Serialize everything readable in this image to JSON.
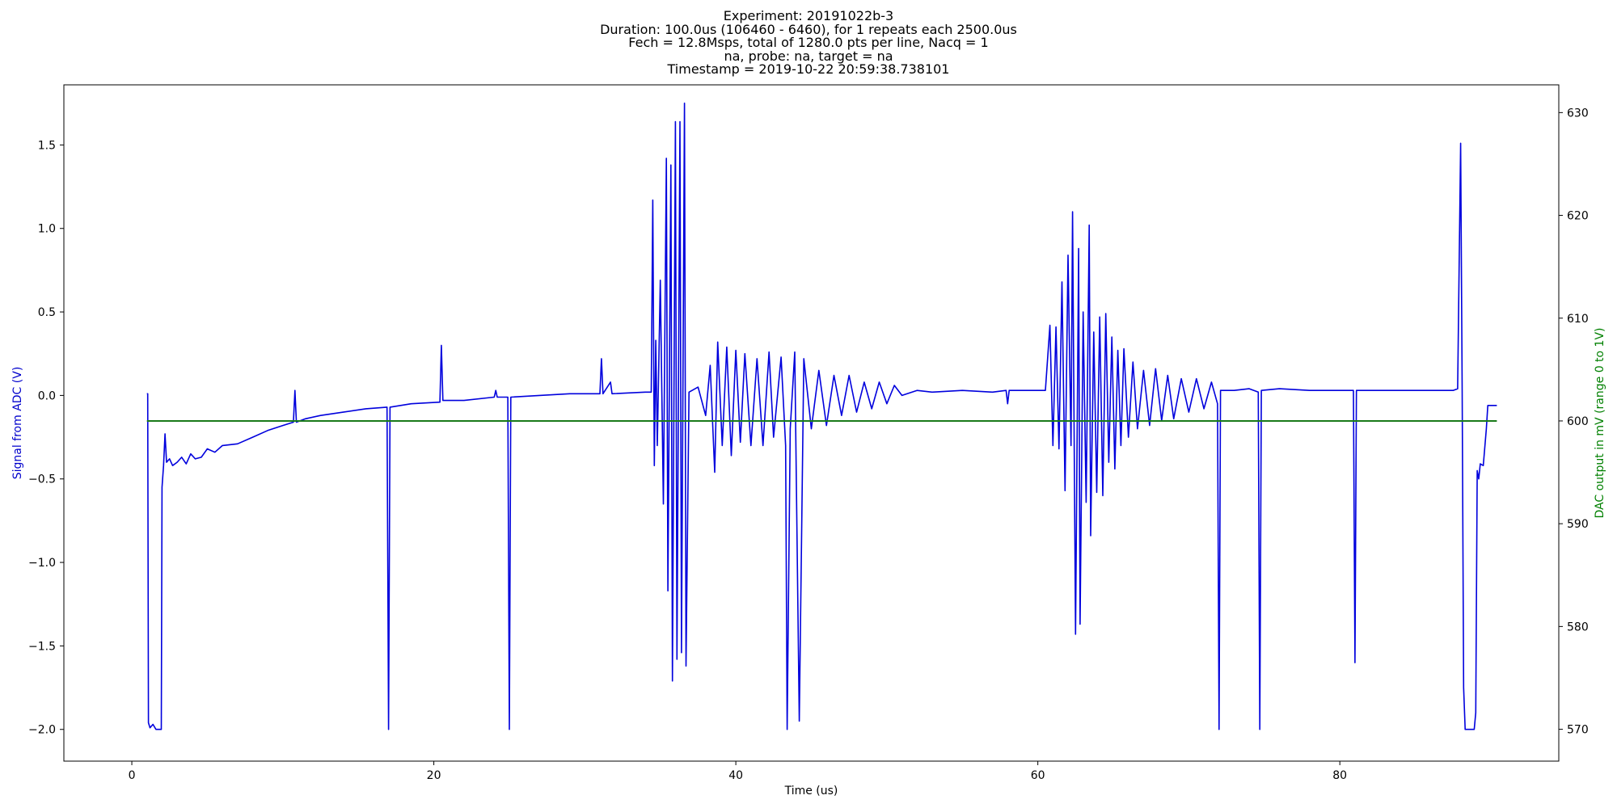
{
  "chart_data": {
    "type": "line",
    "title_lines": [
      "Experiment: 20191022b-3",
      "Duration: 100.0us (106460 - 6460), for 1 repeats each 2500.0us",
      "Fech = 12.8Msps, total of 1280.0 pts per line, Nacq = 1",
      "na, probe: na, target = na",
      "Timestamp = 2019-10-22 20:59:38.738101"
    ],
    "xlabel": "Time (us)",
    "ylabel_left": "Signal from ADC (V)",
    "ylabel_right": "DAC output in mV (range 0 to 1V)",
    "xlim": [
      -4.5,
      94.5
    ],
    "ylim_left": [
      -2.19,
      1.86
    ],
    "ylim_right": [
      566.9,
      632.7
    ],
    "x_ticks": [
      0,
      20,
      40,
      60,
      80
    ],
    "x_tick_labels": [
      "0",
      "20",
      "40",
      "60",
      "80"
    ],
    "y_left_ticks": [
      -2.0,
      -1.5,
      -1.0,
      -0.5,
      0.0,
      0.5,
      1.0,
      1.5
    ],
    "y_left_tick_labels": [
      "−2.0",
      "−1.5",
      "−1.0",
      "−0.5",
      "0.0",
      "0.5",
      "1.0",
      "1.5"
    ],
    "y_right_ticks": [
      570,
      580,
      590,
      600,
      610,
      620,
      630
    ],
    "y_right_tick_labels": [
      "570",
      "580",
      "590",
      "600",
      "610",
      "620",
      "630"
    ],
    "colors": {
      "adc": "#0000dd",
      "dac": "#1a7a1a",
      "left_label": "#0000cc",
      "right_label": "#008000"
    },
    "series": [
      {
        "axis": "left",
        "color": "#0000dd",
        "points": [
          [
            1.0,
            0.01
          ],
          [
            1.05,
            0.01
          ],
          [
            1.1,
            -1.96
          ],
          [
            1.2,
            -1.99
          ],
          [
            1.4,
            -1.97
          ],
          [
            1.6,
            -2.0
          ],
          [
            1.8,
            -2.0
          ],
          [
            1.95,
            -2.0
          ],
          [
            2.0,
            -0.55
          ],
          [
            2.1,
            -0.42
          ],
          [
            2.2,
            -0.23
          ],
          [
            2.3,
            -0.4
          ],
          [
            2.5,
            -0.38
          ],
          [
            2.7,
            -0.42
          ],
          [
            3.0,
            -0.4
          ],
          [
            3.3,
            -0.37
          ],
          [
            3.6,
            -0.41
          ],
          [
            3.9,
            -0.35
          ],
          [
            4.2,
            -0.38
          ],
          [
            4.6,
            -0.37
          ],
          [
            5.0,
            -0.32
          ],
          [
            5.5,
            -0.34
          ],
          [
            6.0,
            -0.3
          ],
          [
            7.0,
            -0.29
          ],
          [
            8.0,
            -0.25
          ],
          [
            9.0,
            -0.21
          ],
          [
            10.0,
            -0.18
          ],
          [
            10.7,
            -0.16
          ],
          [
            10.8,
            0.03
          ],
          [
            10.9,
            -0.16
          ],
          [
            11.5,
            -0.14
          ],
          [
            12.5,
            -0.12
          ],
          [
            14.0,
            -0.1
          ],
          [
            15.5,
            -0.08
          ],
          [
            16.9,
            -0.07
          ],
          [
            17.0,
            -2.0
          ],
          [
            17.1,
            -0.07
          ],
          [
            18.5,
            -0.05
          ],
          [
            20.4,
            -0.04
          ],
          [
            20.5,
            0.3
          ],
          [
            20.6,
            -0.03
          ],
          [
            22.0,
            -0.03
          ],
          [
            24.0,
            -0.01
          ],
          [
            24.1,
            0.03
          ],
          [
            24.2,
            -0.01
          ],
          [
            24.9,
            -0.01
          ],
          [
            25.0,
            -2.0
          ],
          [
            25.1,
            -0.01
          ],
          [
            27.0,
            0.0
          ],
          [
            29.0,
            0.01
          ],
          [
            31.0,
            0.01
          ],
          [
            31.1,
            0.22
          ],
          [
            31.2,
            0.01
          ],
          [
            31.7,
            0.08
          ],
          [
            31.8,
            0.01
          ],
          [
            34.0,
            0.02
          ],
          [
            34.4,
            0.02
          ],
          [
            34.5,
            1.17
          ],
          [
            34.6,
            -0.42
          ],
          [
            34.7,
            0.33
          ],
          [
            34.8,
            -0.3
          ],
          [
            35.0,
            0.69
          ],
          [
            35.2,
            -0.65
          ],
          [
            35.4,
            1.42
          ],
          [
            35.5,
            -1.17
          ],
          [
            35.7,
            1.38
          ],
          [
            35.8,
            -1.71
          ],
          [
            36.0,
            1.64
          ],
          [
            36.1,
            -1.58
          ],
          [
            36.3,
            1.64
          ],
          [
            36.4,
            -1.54
          ],
          [
            36.6,
            1.75
          ],
          [
            36.7,
            -1.62
          ],
          [
            36.9,
            0.02
          ],
          [
            37.5,
            0.05
          ],
          [
            38.0,
            -0.12
          ],
          [
            38.3,
            0.18
          ],
          [
            38.6,
            -0.46
          ],
          [
            38.8,
            0.32
          ],
          [
            39.1,
            -0.3
          ],
          [
            39.4,
            0.29
          ],
          [
            39.7,
            -0.36
          ],
          [
            40.0,
            0.27
          ],
          [
            40.3,
            -0.28
          ],
          [
            40.6,
            0.25
          ],
          [
            41.0,
            -0.3
          ],
          [
            41.4,
            0.22
          ],
          [
            41.8,
            -0.3
          ],
          [
            42.2,
            0.26
          ],
          [
            42.5,
            -0.25
          ],
          [
            43.0,
            0.23
          ],
          [
            43.3,
            -0.3
          ],
          [
            43.4,
            -2.0
          ],
          [
            43.6,
            -0.2
          ],
          [
            43.9,
            0.26
          ],
          [
            44.2,
            -1.95
          ],
          [
            44.5,
            0.22
          ],
          [
            45.0,
            -0.2
          ],
          [
            45.5,
            0.15
          ],
          [
            46.0,
            -0.18
          ],
          [
            46.5,
            0.12
          ],
          [
            47.0,
            -0.12
          ],
          [
            47.5,
            0.12
          ],
          [
            48.0,
            -0.1
          ],
          [
            48.5,
            0.08
          ],
          [
            49.0,
            -0.08
          ],
          [
            49.5,
            0.08
          ],
          [
            50.0,
            -0.05
          ],
          [
            50.5,
            0.06
          ],
          [
            51.0,
            0.0
          ],
          [
            52.0,
            0.03
          ],
          [
            53.0,
            0.02
          ],
          [
            55.0,
            0.03
          ],
          [
            57.0,
            0.02
          ],
          [
            57.9,
            0.03
          ],
          [
            58.0,
            -0.05
          ],
          [
            58.1,
            0.03
          ],
          [
            60.0,
            0.03
          ],
          [
            60.5,
            0.03
          ],
          [
            60.8,
            0.42
          ],
          [
            61.0,
            -0.3
          ],
          [
            61.2,
            0.41
          ],
          [
            61.4,
            -0.32
          ],
          [
            61.6,
            0.68
          ],
          [
            61.8,
            -0.57
          ],
          [
            62.0,
            0.84
          ],
          [
            62.2,
            -0.3
          ],
          [
            62.3,
            1.1
          ],
          [
            62.5,
            -1.43
          ],
          [
            62.7,
            0.88
          ],
          [
            62.8,
            -1.37
          ],
          [
            63.0,
            0.5
          ],
          [
            63.2,
            -0.64
          ],
          [
            63.4,
            1.02
          ],
          [
            63.5,
            -0.84
          ],
          [
            63.7,
            0.38
          ],
          [
            63.9,
            -0.58
          ],
          [
            64.1,
            0.47
          ],
          [
            64.3,
            -0.6
          ],
          [
            64.5,
            0.49
          ],
          [
            64.7,
            -0.4
          ],
          [
            64.9,
            0.35
          ],
          [
            65.1,
            -0.44
          ],
          [
            65.3,
            0.27
          ],
          [
            65.5,
            -0.3
          ],
          [
            65.7,
            0.28
          ],
          [
            66.0,
            -0.25
          ],
          [
            66.3,
            0.2
          ],
          [
            66.6,
            -0.2
          ],
          [
            67.0,
            0.15
          ],
          [
            67.4,
            -0.18
          ],
          [
            67.8,
            0.16
          ],
          [
            68.2,
            -0.15
          ],
          [
            68.6,
            0.12
          ],
          [
            69.0,
            -0.14
          ],
          [
            69.5,
            0.1
          ],
          [
            70.0,
            -0.1
          ],
          [
            70.5,
            0.1
          ],
          [
            71.0,
            -0.08
          ],
          [
            71.5,
            0.08
          ],
          [
            71.9,
            -0.05
          ],
          [
            72.0,
            -2.0
          ],
          [
            72.1,
            0.03
          ],
          [
            73.0,
            0.03
          ],
          [
            74.0,
            0.04
          ],
          [
            74.6,
            0.02
          ],
          [
            74.7,
            -2.0
          ],
          [
            74.8,
            0.03
          ],
          [
            76.0,
            0.04
          ],
          [
            78.0,
            0.03
          ],
          [
            80.9,
            0.03
          ],
          [
            81.0,
            -1.6
          ],
          [
            81.1,
            0.03
          ],
          [
            83.0,
            0.03
          ],
          [
            85.0,
            0.03
          ],
          [
            87.5,
            0.03
          ],
          [
            87.8,
            0.04
          ],
          [
            88.0,
            1.51
          ],
          [
            88.1,
            0.03
          ],
          [
            88.2,
            -1.75
          ],
          [
            88.3,
            -2.0
          ],
          [
            88.6,
            -2.0
          ],
          [
            88.9,
            -2.0
          ],
          [
            89.0,
            -1.9
          ],
          [
            89.1,
            -0.45
          ],
          [
            89.2,
            -0.5
          ],
          [
            89.3,
            -0.41
          ],
          [
            89.5,
            -0.42
          ],
          [
            89.7,
            -0.2
          ],
          [
            89.8,
            -0.06
          ],
          [
            90.0,
            -0.06
          ],
          [
            90.4,
            -0.06
          ]
        ]
      },
      {
        "axis": "right",
        "color": "#1a7a1a",
        "points": [
          [
            1.0,
            600.0
          ],
          [
            90.4,
            600.0
          ]
        ]
      }
    ]
  }
}
